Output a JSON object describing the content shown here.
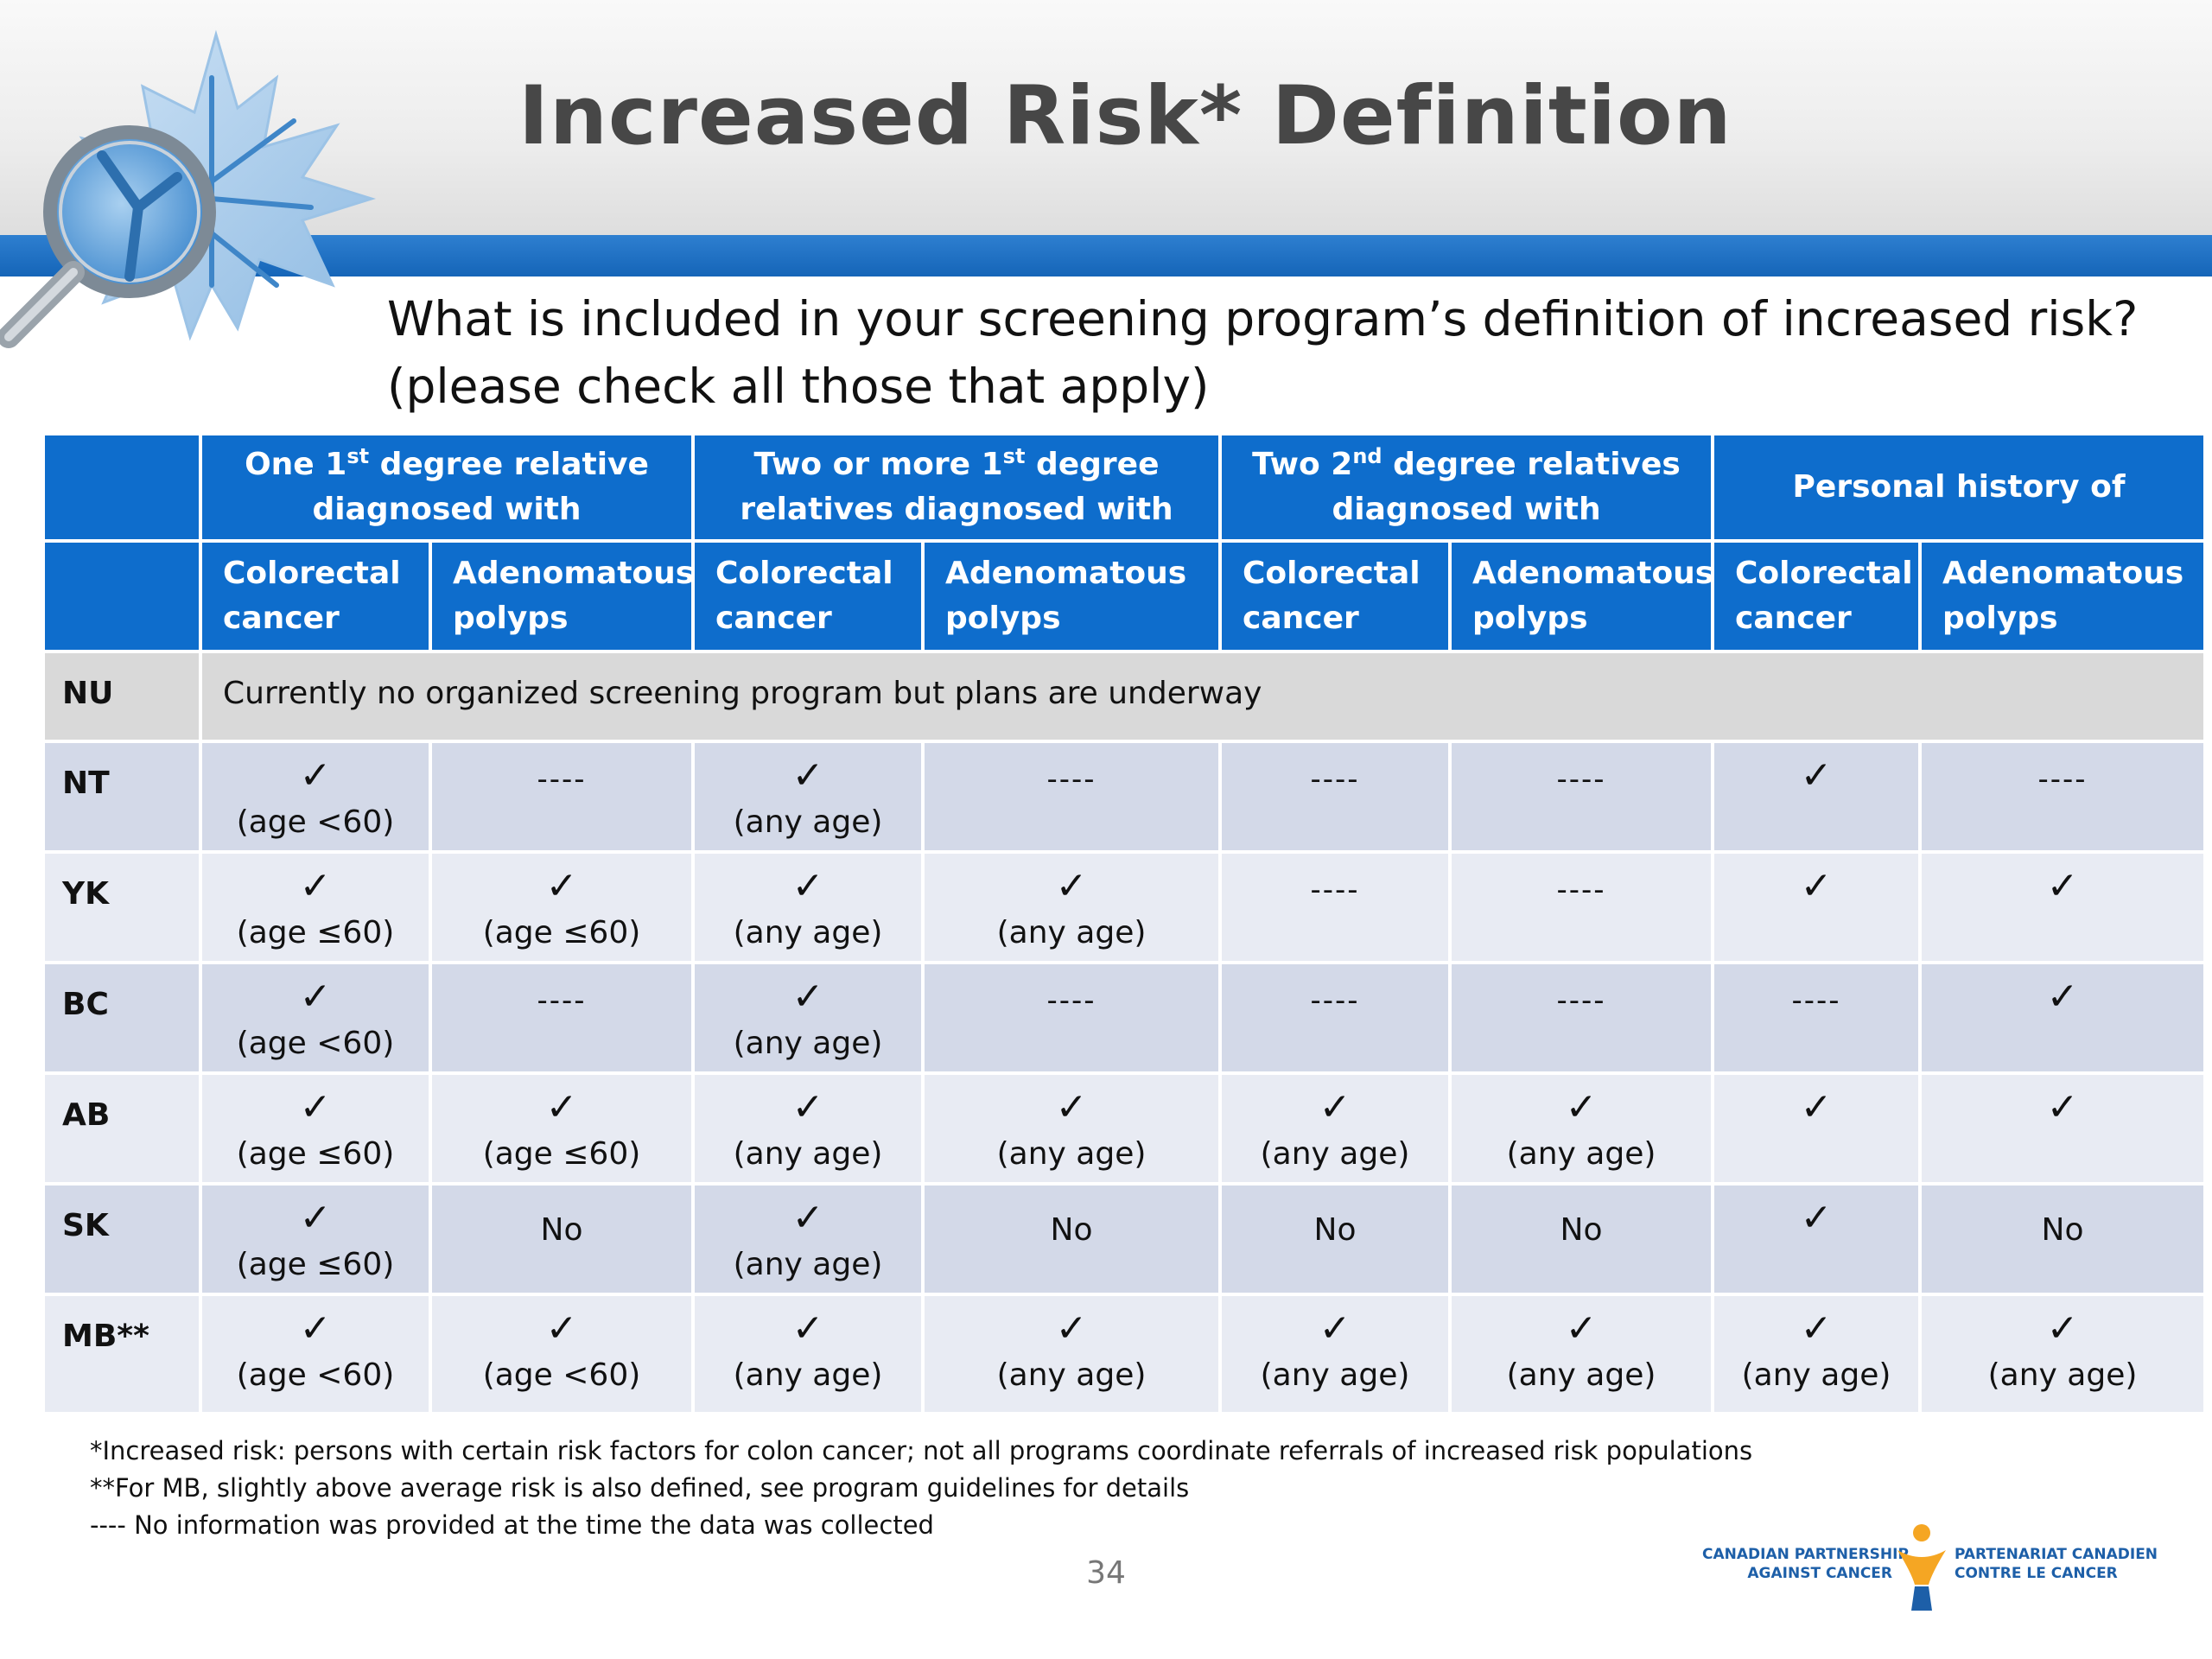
{
  "slide": {
    "title": "Increased Risk* Definition",
    "question_line1": "What is included in your screening program’s definition of increased risk?",
    "question_line2": "(please check all those that apply)",
    "page_number": "34"
  },
  "table": {
    "group_headers": [
      {
        "pre": "One 1",
        "sup": "st",
        "post": " degree relative diagnosed  with"
      },
      {
        "pre": "Two or more 1",
        "sup": "st",
        "post": " degree relatives diagnosed with"
      },
      {
        "pre": "Two 2",
        "sup": "nd",
        "post": " degree relatives diagnosed with"
      },
      {
        "pre": "Personal history of",
        "sup": "",
        "post": ""
      }
    ],
    "sub_headers": [
      "Colorectal cancer",
      "Adenomatous polyps",
      "Colorectal cancer",
      "Adenomatous polyps",
      "Colorectal cancer",
      "Adenomatous polyps",
      "Colorectal cancer",
      "Adenomatous polyps"
    ],
    "nu_row": {
      "province": "NU",
      "note": "Currently no organized screening program but plans are underway"
    },
    "rows": [
      {
        "province": "NT",
        "cells": [
          {
            "mark": "✓",
            "sub": "(age <60)"
          },
          {
            "dash": "----"
          },
          {
            "mark": "✓",
            "sub": "(any age)"
          },
          {
            "dash": "----"
          },
          {
            "dash": "----"
          },
          {
            "dash": "----"
          },
          {
            "mark": "✓"
          },
          {
            "dash": "----"
          }
        ]
      },
      {
        "province": "YK",
        "cells": [
          {
            "mark": "✓",
            "sub": "(age ≤60)"
          },
          {
            "mark": "✓",
            "sub": "(age ≤60)"
          },
          {
            "mark": "✓",
            "sub": "(any age)"
          },
          {
            "mark": "✓",
            "sub": "(any age)"
          },
          {
            "dash": "----"
          },
          {
            "dash": "----"
          },
          {
            "mark": "✓"
          },
          {
            "mark": "✓"
          }
        ]
      },
      {
        "province": "BC",
        "cells": [
          {
            "mark": "✓",
            "sub": "(age <60)"
          },
          {
            "dash": "----"
          },
          {
            "mark": "✓",
            "sub": "(any age)"
          },
          {
            "dash": "----"
          },
          {
            "dash": "----"
          },
          {
            "dash": "----"
          },
          {
            "dash": "----"
          },
          {
            "mark": "✓"
          }
        ]
      },
      {
        "province": "AB",
        "cells": [
          {
            "mark": "✓",
            "sub": "(age ≤60)"
          },
          {
            "mark": "✓",
            "sub": "(age ≤60)"
          },
          {
            "mark": "✓",
            "sub": "(any age)"
          },
          {
            "mark": "✓",
            "sub": "(any age)"
          },
          {
            "mark": "✓",
            "sub": "(any age)"
          },
          {
            "mark": "✓",
            "sub": "(any age)"
          },
          {
            "mark": "✓"
          },
          {
            "mark": "✓"
          }
        ]
      },
      {
        "province": "SK",
        "cells": [
          {
            "mark": "✓",
            "sub": "(age ≤60)"
          },
          {
            "text": "No"
          },
          {
            "mark": "✓",
            "sub": "(any age)"
          },
          {
            "text": "No"
          },
          {
            "text": "No"
          },
          {
            "text": "No"
          },
          {
            "mark": "✓"
          },
          {
            "text": "No"
          }
        ]
      },
      {
        "province": "MB**",
        "cells": [
          {
            "mark": "✓",
            "sub": "(age <60)"
          },
          {
            "mark": "✓",
            "sub": "(age <60)"
          },
          {
            "mark": "✓",
            "sub": "(any age)"
          },
          {
            "mark": "✓",
            "sub": "(any age)"
          },
          {
            "mark": "✓",
            "sub": "(any age)"
          },
          {
            "mark": "✓",
            "sub": "(any age)"
          },
          {
            "mark": "✓",
            "sub": "(any age)"
          },
          {
            "mark": "✓",
            "sub": "(any age)"
          }
        ]
      }
    ]
  },
  "footnotes": [
    "*Increased risk: persons with certain risk factors for colon cancer; not all programs coordinate referrals of increased risk populations",
    "**For MB, slightly above average risk is also defined, see program guidelines for details",
    "---- No information was provided at the time the data was collected"
  ],
  "partner_logo": {
    "en_line1": "CANADIAN PARTNERSHIP",
    "en_line2": "AGAINST CANCER",
    "fr_line1": "PARTENARIAT CANADIEN",
    "fr_line2": "CONTRE LE CANCER",
    "colors": {
      "orange": "#f5a623",
      "blue": "#1d5fa8"
    }
  },
  "colors": {
    "header_blue": "#0e6dcc",
    "stripe_blue": "#1565b8",
    "row_dark": "#d3d9e8",
    "row_light": "#e8ebf3",
    "nu_gray": "#d9d9d9",
    "title_gray": "#474747"
  },
  "icons": {
    "logo": "maple-leaf-magnifier-icon",
    "partner": "person-figure-icon",
    "check": "check-mark-icon"
  }
}
